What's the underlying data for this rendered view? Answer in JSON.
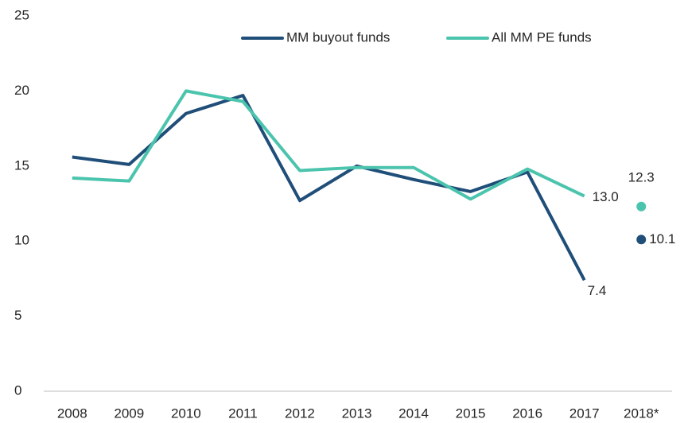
{
  "chart_data": {
    "type": "line",
    "categories": [
      "2008",
      "2009",
      "2010",
      "2011",
      "2012",
      "2013",
      "2014",
      "2015",
      "2016",
      "2017",
      "2018*"
    ],
    "point_only_categories": [
      "2018*"
    ],
    "series": [
      {
        "name": "MM buyout funds",
        "color": "#1f4e79",
        "values": [
          15.6,
          15.1,
          18.5,
          19.7,
          12.7,
          15.0,
          14.1,
          13.3,
          14.6,
          7.4,
          10.1
        ],
        "value_labels": [
          null,
          null,
          null,
          null,
          null,
          null,
          null,
          null,
          null,
          "7.4",
          "10.1"
        ]
      },
      {
        "name": "All MM PE funds",
        "color": "#4bc4ad",
        "values": [
          14.2,
          14.0,
          20.0,
          19.3,
          14.7,
          14.9,
          14.9,
          12.8,
          14.8,
          13.0,
          12.3
        ],
        "value_labels": [
          null,
          null,
          null,
          null,
          null,
          null,
          null,
          null,
          null,
          "13.0",
          "12.3"
        ]
      }
    ],
    "ylim": [
      0,
      25
    ],
    "yticks": [
      0,
      5,
      10,
      15,
      20,
      25
    ],
    "grid": false,
    "legend": "top"
  }
}
